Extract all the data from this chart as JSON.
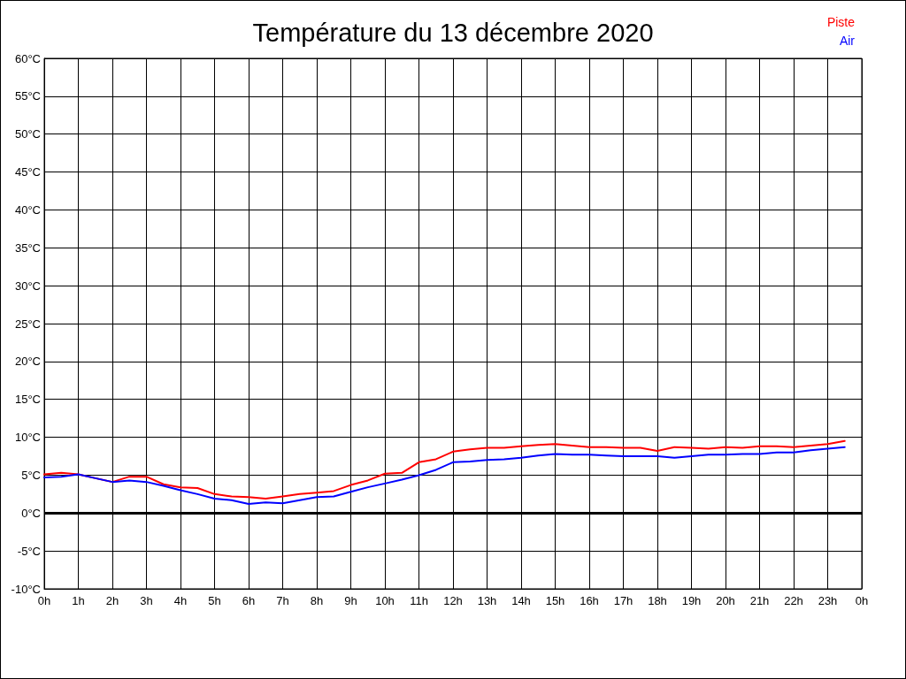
{
  "chart_data": {
    "type": "line",
    "title": "Température du 13 décembre 2020",
    "x": [
      "2020-12-13T00:00",
      "2020-12-13T00:30",
      "2020-12-13T01:00",
      "2020-12-13T01:30",
      "2020-12-13T02:00",
      "2020-12-13T02:30",
      "2020-12-13T03:00",
      "2020-12-13T03:30",
      "2020-12-13T04:00",
      "2020-12-13T04:30",
      "2020-12-13T05:00",
      "2020-12-13T05:30",
      "2020-12-13T06:00",
      "2020-12-13T06:30",
      "2020-12-13T07:00",
      "2020-12-13T07:30",
      "2020-12-13T08:00",
      "2020-12-13T08:30",
      "2020-12-13T09:00",
      "2020-12-13T09:30",
      "2020-12-13T10:00",
      "2020-12-13T10:30",
      "2020-12-13T11:00",
      "2020-12-13T11:30",
      "2020-12-13T12:00",
      "2020-12-13T12:30",
      "2020-12-13T13:00",
      "2020-12-13T13:30",
      "2020-12-13T14:00",
      "2020-12-13T14:30",
      "2020-12-13T15:00",
      "2020-12-13T15:30",
      "2020-12-13T16:00",
      "2020-12-13T16:30",
      "2020-12-13T17:00",
      "2020-12-13T17:30",
      "2020-12-13T18:00",
      "2020-12-13T18:30",
      "2020-12-13T19:00",
      "2020-12-13T19:30",
      "2020-12-13T20:00",
      "2020-12-13T20:30",
      "2020-12-13T21:00",
      "2020-12-13T21:30",
      "2020-12-13T22:00",
      "2020-12-13T22:30",
      "2020-12-13T23:00",
      "2020-12-13T23:30"
    ],
    "series": [
      {
        "name": "Piste",
        "color": "#ff0000",
        "values": [
          5.1,
          5.3,
          5.1,
          4.6,
          4.1,
          4.8,
          4.8,
          3.8,
          3.4,
          3.3,
          2.5,
          2.2,
          2.1,
          1.9,
          2.2,
          2.5,
          2.7,
          2.9,
          3.7,
          4.3,
          5.2,
          5.3,
          6.7,
          7.1,
          8.1,
          8.4,
          8.6,
          8.6,
          8.8,
          9.0,
          9.1,
          8.9,
          8.7,
          8.7,
          8.6,
          8.6,
          8.2,
          8.7,
          8.6,
          8.5,
          8.7,
          8.6,
          8.8,
          8.8,
          8.7,
          8.9,
          9.1,
          9.5
        ]
      },
      {
        "name": "Air",
        "color": "#0000ff",
        "values": [
          4.7,
          4.8,
          5.1,
          4.6,
          4.1,
          4.3,
          4.1,
          3.6,
          3.0,
          2.5,
          1.9,
          1.7,
          1.2,
          1.4,
          1.3,
          1.7,
          2.1,
          2.2,
          2.8,
          3.4,
          3.9,
          4.4,
          5.0,
          5.7,
          6.7,
          6.8,
          7.0,
          7.1,
          7.3,
          7.6,
          7.8,
          7.7,
          7.7,
          7.6,
          7.5,
          7.5,
          7.5,
          7.3,
          7.5,
          7.7,
          7.7,
          7.8,
          7.8,
          8.0,
          8.0,
          8.3,
          8.5,
          8.7
        ]
      }
    ],
    "xlim": [
      "2020-12-13T00:00",
      "2020-12-14T00:00"
    ],
    "xticks": [
      {
        "value": "2020-12-13T00:00",
        "label": "0h"
      },
      {
        "value": "2020-12-13T01:00",
        "label": "1h"
      },
      {
        "value": "2020-12-13T02:00",
        "label": "2h"
      },
      {
        "value": "2020-12-13T03:00",
        "label": "3h"
      },
      {
        "value": "2020-12-13T04:00",
        "label": "4h"
      },
      {
        "value": "2020-12-13T05:00",
        "label": "5h"
      },
      {
        "value": "2020-12-13T06:00",
        "label": "6h"
      },
      {
        "value": "2020-12-13T07:00",
        "label": "7h"
      },
      {
        "value": "2020-12-13T08:00",
        "label": "8h"
      },
      {
        "value": "2020-12-13T09:00",
        "label": "9h"
      },
      {
        "value": "2020-12-13T10:00",
        "label": "10h"
      },
      {
        "value": "2020-12-13T11:00",
        "label": "11h"
      },
      {
        "value": "2020-12-13T12:00",
        "label": "12h"
      },
      {
        "value": "2020-12-13T13:00",
        "label": "13h"
      },
      {
        "value": "2020-12-13T14:00",
        "label": "14h"
      },
      {
        "value": "2020-12-13T15:00",
        "label": "15h"
      },
      {
        "value": "2020-12-13T16:00",
        "label": "16h"
      },
      {
        "value": "2020-12-13T17:00",
        "label": "17h"
      },
      {
        "value": "2020-12-13T18:00",
        "label": "18h"
      },
      {
        "value": "2020-12-13T19:00",
        "label": "19h"
      },
      {
        "value": "2020-12-13T20:00",
        "label": "20h"
      },
      {
        "value": "2020-12-13T21:00",
        "label": "21h"
      },
      {
        "value": "2020-12-13T22:00",
        "label": "22h"
      },
      {
        "value": "2020-12-13T23:00",
        "label": "23h"
      },
      {
        "value": "2020-12-14T00:00",
        "label": "0h"
      }
    ],
    "ylim": [
      -10,
      60
    ],
    "yticks": [
      {
        "value": -10,
        "label": "-10°C"
      },
      {
        "value": -5,
        "label": "-5°C"
      },
      {
        "value": 0,
        "label": "0°C"
      },
      {
        "value": 5,
        "label": "5°C"
      },
      {
        "value": 10,
        "label": "10°C"
      },
      {
        "value": 15,
        "label": "15°C"
      },
      {
        "value": 20,
        "label": "20°C"
      },
      {
        "value": 25,
        "label": "25°C"
      },
      {
        "value": 30,
        "label": "30°C"
      },
      {
        "value": 35,
        "label": "35°C"
      },
      {
        "value": 40,
        "label": "40°C"
      },
      {
        "value": 45,
        "label": "45°C"
      },
      {
        "value": 50,
        "label": "50°C"
      },
      {
        "value": 55,
        "label": "55°C"
      },
      {
        "value": 60,
        "label": "60°C"
      }
    ],
    "ref_lines": [
      {
        "axis": "y",
        "value": 0,
        "color": "#000000"
      }
    ],
    "grid": true,
    "legend": "top right",
    "line_style": "solid"
  }
}
